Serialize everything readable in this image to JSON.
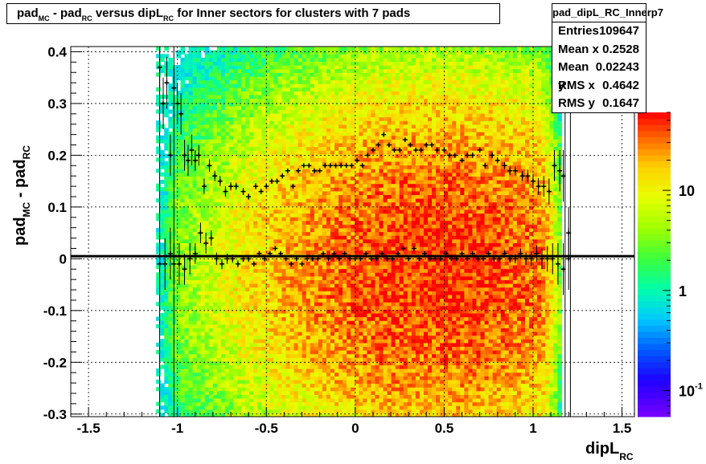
{
  "title": {
    "parts": [
      {
        "text": "pad",
        "sub": false
      },
      {
        "text": "MC",
        "sub": true
      },
      {
        "text": " - pad",
        "sub": false
      },
      {
        "text": "RC",
        "sub": true
      },
      {
        "text": " versus dipL",
        "sub": false
      },
      {
        "text": "RC",
        "sub": true
      },
      {
        "text": " for Inner sectors for clusters with 7 pads",
        "sub": false
      }
    ]
  },
  "stats": {
    "name": "pad_dipL_RC_Innerp7",
    "rows": [
      {
        "label": "Entries",
        "value": "109647"
      },
      {
        "label": "Mean x",
        "value": "0.2528"
      },
      {
        "label": "Mean y",
        "value": "0.02243"
      },
      {
        "label": "RMS x",
        "value": "0.4642"
      },
      {
        "label": "RMS y",
        "value": "0.1647"
      }
    ]
  },
  "axes": {
    "ylabel_parts": [
      {
        "text": "pad",
        "sub": false
      },
      {
        "text": "MC",
        "sub": true
      },
      {
        "text": " - pad",
        "sub": false
      },
      {
        "text": "RC",
        "sub": true
      }
    ],
    "xlabel_parts": [
      {
        "text": "dipL",
        "sub": false
      },
      {
        "text": "RC",
        "sub": true
      }
    ]
  },
  "chart_data": {
    "type": "heatmap",
    "xlim": [
      -1.6,
      1.57
    ],
    "ylim": [
      -0.305,
      0.41
    ],
    "x_ticks": [
      {
        "value": -1.5,
        "label": "-1.5"
      },
      {
        "value": -1,
        "label": "-1"
      },
      {
        "value": -0.5,
        "label": "-0.5"
      },
      {
        "value": 0,
        "label": "0"
      },
      {
        "value": 0.5,
        "label": "0.5"
      },
      {
        "value": 1,
        "label": "1"
      },
      {
        "value": 1.5,
        "label": "1.5"
      }
    ],
    "y_ticks": [
      {
        "value": -0.3,
        "label": "-0.3"
      },
      {
        "value": -0.2,
        "label": "-0.2"
      },
      {
        "value": -0.1,
        "label": "-0.1"
      },
      {
        "value": 0,
        "label": "0"
      },
      {
        "value": 0.1,
        "label": "0.1"
      },
      {
        "value": 0.2,
        "label": "0.2"
      },
      {
        "value": 0.3,
        "label": "0.3"
      },
      {
        "value": 0.4,
        "label": "0.4"
      }
    ],
    "grid": true,
    "colorbar": {
      "scale": "log",
      "zlim": [
        0.055,
        60
      ],
      "ticks": [
        {
          "value": 10,
          "label": "10"
        },
        {
          "value": 1,
          "label": "1"
        },
        {
          "value": 0.1,
          "label": "10^-1"
        }
      ]
    },
    "density_model": {
      "x_range": [
        -1.12,
        1.16
      ],
      "peak_x": 0.45,
      "peak_y": -0.02,
      "peak_z": 45
    },
    "reference_line_y": 0.005,
    "vertical_lines_x": [
      -1.1,
      -1.02,
      1.18,
      1.21
    ],
    "profile_upper": {
      "x": [
        -1.1,
        -1.08,
        -1.06,
        -1.04,
        -1.02,
        -1.0,
        -0.98,
        -0.96,
        -0.94,
        -0.92,
        -0.9,
        -0.88,
        -0.85,
        -0.82,
        -0.79,
        -0.76,
        -0.73,
        -0.7,
        -0.67,
        -0.63,
        -0.6,
        -0.56,
        -0.53,
        -0.5,
        -0.47,
        -0.44,
        -0.41,
        -0.38,
        -0.35,
        -0.32,
        -0.29,
        -0.26,
        -0.23,
        -0.2,
        -0.17,
        -0.14,
        -0.11,
        -0.08,
        -0.05,
        -0.02,
        0.01,
        0.04,
        0.07,
        0.1,
        0.13,
        0.16,
        0.19,
        0.22,
        0.25,
        0.28,
        0.31,
        0.34,
        0.37,
        0.4,
        0.43,
        0.46,
        0.5,
        0.53,
        0.56,
        0.6,
        0.63,
        0.66,
        0.7,
        0.73,
        0.77,
        0.8,
        0.84,
        0.87,
        0.9,
        0.94,
        0.97,
        1.0,
        1.03,
        1.06,
        1.09,
        1.12,
        1.15,
        1.17,
        1.2
      ],
      "y": [
        0.37,
        0.3,
        0.34,
        0.2,
        0.33,
        0.3,
        0.28,
        0.2,
        0.19,
        0.21,
        0.19,
        0.2,
        0.14,
        0.18,
        0.16,
        0.15,
        0.13,
        0.14,
        0.14,
        0.13,
        0.12,
        0.14,
        0.13,
        0.14,
        0.15,
        0.15,
        0.16,
        0.17,
        0.14,
        0.17,
        0.18,
        0.18,
        0.17,
        0.17,
        0.18,
        0.18,
        0.18,
        0.18,
        0.18,
        0.18,
        0.19,
        0.18,
        0.2,
        0.21,
        0.22,
        0.24,
        0.22,
        0.21,
        0.21,
        0.23,
        0.22,
        0.21,
        0.21,
        0.22,
        0.22,
        0.21,
        0.21,
        0.2,
        0.2,
        0.19,
        0.2,
        0.2,
        0.21,
        0.18,
        0.2,
        0.19,
        0.18,
        0.17,
        0.17,
        0.16,
        0.16,
        0.15,
        0.14,
        0.14,
        0.13,
        0.18,
        0.17,
        0.16,
        0.05
      ],
      "err": [
        0.04,
        0.05,
        0.05,
        0.04,
        0.04,
        0.04,
        0.04,
        0.03,
        0.03,
        0.03,
        0.02,
        0.02,
        0.015,
        0.012,
        0.01,
        0.01,
        0.01,
        0.008,
        0.007,
        0.007,
        0.006,
        0.006,
        0.005,
        0.005,
        0.005,
        0.005,
        0.005,
        0.004,
        0.004,
        0.004,
        0.004,
        0.004,
        0.004,
        0.004,
        0.004,
        0.004,
        0.004,
        0.004,
        0.004,
        0.004,
        0.004,
        0.004,
        0.004,
        0.004,
        0.004,
        0.004,
        0.004,
        0.004,
        0.004,
        0.004,
        0.004,
        0.004,
        0.004,
        0.004,
        0.004,
        0.004,
        0.004,
        0.004,
        0.004,
        0.004,
        0.004,
        0.005,
        0.005,
        0.005,
        0.006,
        0.006,
        0.007,
        0.008,
        0.009,
        0.01,
        0.012,
        0.014,
        0.016,
        0.02,
        0.025,
        0.03,
        0.04,
        0.05,
        0.05
      ]
    },
    "profile_lower": {
      "x": [
        -1.1,
        -1.07,
        -1.04,
        -1.02,
        -0.99,
        -0.96,
        -0.93,
        -0.9,
        -0.87,
        -0.84,
        -0.81,
        -0.78,
        -0.75,
        -0.72,
        -0.69,
        -0.66,
        -0.63,
        -0.6,
        -0.57,
        -0.54,
        -0.51,
        -0.48,
        -0.45,
        -0.42,
        -0.39,
        -0.36,
        -0.33,
        -0.3,
        -0.27,
        -0.24,
        -0.21,
        -0.18,
        -0.15,
        -0.12,
        -0.09,
        -0.06,
        -0.03,
        0.0,
        0.03,
        0.06,
        0.09,
        0.12,
        0.15,
        0.18,
        0.21,
        0.24,
        0.27,
        0.3,
        0.33,
        0.36,
        0.39,
        0.42,
        0.45,
        0.48,
        0.51,
        0.54,
        0.57,
        0.6,
        0.63,
        0.66,
        0.69,
        0.72,
        0.75,
        0.78,
        0.81,
        0.84,
        0.87,
        0.9,
        0.93,
        0.96,
        0.99,
        1.02,
        1.05,
        1.08,
        1.11,
        1.14,
        1.17,
        1.2
      ],
      "y": [
        -0.01,
        -0.01,
        0.01,
        -0.01,
        -0.01,
        -0.02,
        0.0,
        0.01,
        0.05,
        0.03,
        0.04,
        0.0,
        -0.01,
        0.0,
        0.0,
        -0.01,
        0.0,
        0.0,
        -0.01,
        0.01,
        0.0,
        0.01,
        0.02,
        0.01,
        0.0,
        -0.01,
        0.0,
        -0.01,
        0.0,
        0.0,
        0.0,
        0.01,
        0.0,
        0.01,
        0.0,
        0.01,
        0.0,
        0.0,
        0.0,
        0.01,
        0.0,
        0.0,
        0.01,
        0.0,
        0.0,
        0.01,
        0.02,
        0.0,
        0.02,
        0.0,
        0.01,
        0.0,
        0.0,
        0.0,
        0.01,
        0.0,
        0.0,
        0.01,
        0.0,
        0.01,
        0.0,
        0.0,
        0.01,
        0.0,
        0.0,
        0.01,
        0.0,
        0.0,
        0.01,
        0.0,
        0.0,
        0.01,
        0.0,
        0.0,
        0.0,
        -0.01,
        -0.02,
        0.0
      ],
      "err": [
        0.06,
        0.05,
        0.05,
        0.04,
        0.04,
        0.03,
        0.03,
        0.02,
        0.02,
        0.02,
        0.015,
        0.012,
        0.01,
        0.01,
        0.008,
        0.007,
        0.006,
        0.006,
        0.005,
        0.005,
        0.005,
        0.004,
        0.004,
        0.004,
        0.004,
        0.004,
        0.004,
        0.004,
        0.004,
        0.004,
        0.004,
        0.004,
        0.004,
        0.004,
        0.004,
        0.004,
        0.004,
        0.004,
        0.004,
        0.004,
        0.004,
        0.004,
        0.004,
        0.004,
        0.004,
        0.004,
        0.004,
        0.004,
        0.004,
        0.004,
        0.004,
        0.004,
        0.004,
        0.004,
        0.004,
        0.004,
        0.004,
        0.004,
        0.004,
        0.004,
        0.005,
        0.005,
        0.005,
        0.006,
        0.006,
        0.007,
        0.008,
        0.009,
        0.01,
        0.012,
        0.014,
        0.016,
        0.02,
        0.025,
        0.03,
        0.04,
        0.05,
        0.06
      ]
    }
  }
}
